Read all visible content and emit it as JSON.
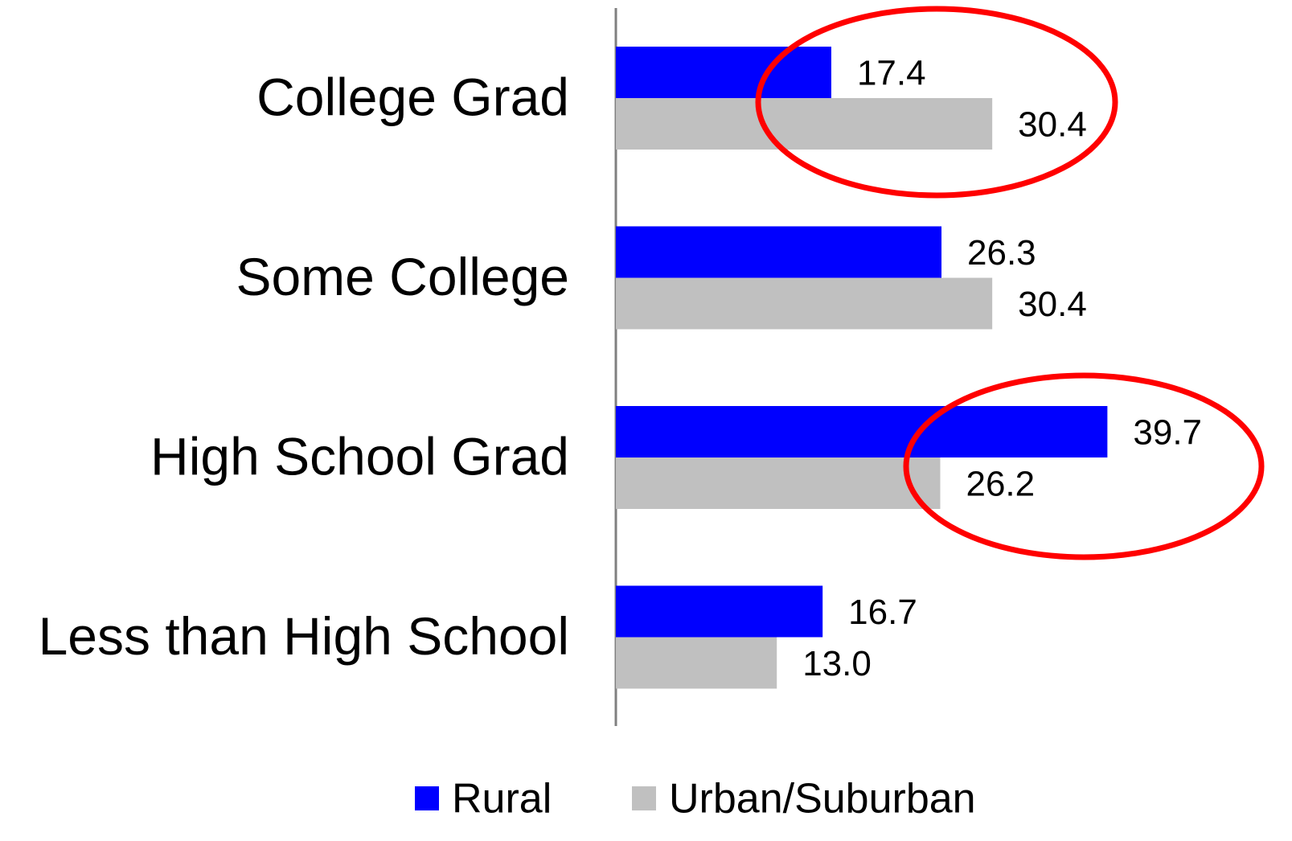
{
  "chart_data": {
    "type": "bar",
    "orientation": "horizontal",
    "categories": [
      "College Grad",
      "Some College",
      "High School Grad",
      "Less than High School"
    ],
    "series": [
      {
        "name": "Rural",
        "color": "#0000ff",
        "values": [
          17.4,
          26.3,
          39.7,
          16.7
        ],
        "value_labels": [
          "17.4",
          "26.3",
          "39.7",
          "16.7"
        ]
      },
      {
        "name": "Urban/Suburban",
        "color": "#c0c0c0",
        "values": [
          30.4,
          30.4,
          26.2,
          13.0
        ],
        "value_labels": [
          "30.4",
          "30.4",
          "26.2",
          "13.0"
        ]
      }
    ],
    "xlim": [
      0,
      50
    ],
    "legend": "bottom"
  }
}
